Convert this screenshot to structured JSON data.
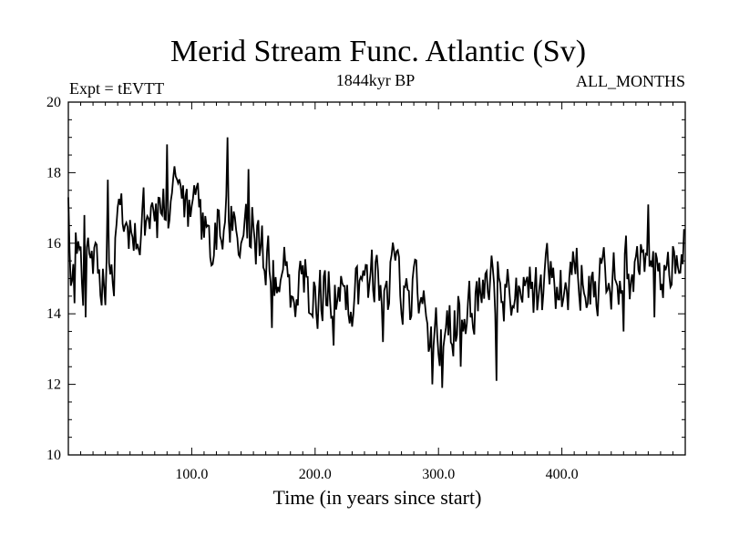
{
  "chart_data": {
    "type": "line",
    "title": "Merid Stream Func. Atlantic (Sv)",
    "subtitle_left": "Expt = tEVTT",
    "subtitle_center": "1844kyr BP",
    "subtitle_right": "ALL_MONTHS",
    "xlabel": "Time (in years since start)",
    "ylabel": "",
    "xlim": [
      0,
      500
    ],
    "ylim": [
      10,
      20
    ],
    "x_ticks": [
      100,
      200,
      300,
      400
    ],
    "x_tick_labels": [
      "100.0",
      "200.0",
      "300.0",
      "400.0"
    ],
    "y_ticks": [
      10,
      12,
      14,
      16,
      18,
      20
    ],
    "y_tick_labels": [
      "10",
      "12",
      "14",
      "16",
      "18",
      "20"
    ],
    "grid": false,
    "series": [
      {
        "name": "Merid Stream Func. Atlantic",
        "color": "#000000",
        "trend_points": [
          [
            0,
            15.6
          ],
          [
            10,
            15.1
          ],
          [
            20,
            15.5
          ],
          [
            30,
            15.3
          ],
          [
            40,
            16.1
          ],
          [
            60,
            16.5
          ],
          [
            80,
            17.1
          ],
          [
            100,
            16.6
          ],
          [
            110,
            16.2
          ],
          [
            130,
            16.9
          ],
          [
            150,
            16.6
          ],
          [
            155,
            15.8
          ],
          [
            170,
            15.0
          ],
          [
            200,
            14.7
          ],
          [
            220,
            14.6
          ],
          [
            250,
            15.0
          ],
          [
            270,
            14.9
          ],
          [
            285,
            14.3
          ],
          [
            300,
            13.2
          ],
          [
            310,
            13.8
          ],
          [
            330,
            14.2
          ],
          [
            350,
            14.8
          ],
          [
            380,
            14.6
          ],
          [
            420,
            15.1
          ],
          [
            460,
            15.3
          ],
          [
            480,
            15.0
          ],
          [
            497,
            15.6
          ]
        ],
        "noise_amplitude": 0.85,
        "extremes": [
          [
            0,
            17.3
          ],
          [
            5,
            14.3
          ],
          [
            13,
            16.8
          ],
          [
            14,
            13.9
          ],
          [
            32,
            17.8
          ],
          [
            37,
            14.5
          ],
          [
            80,
            18.8
          ],
          [
            115,
            15.6
          ],
          [
            129,
            19.0
          ],
          [
            140,
            16.0
          ],
          [
            146,
            18.1
          ],
          [
            152,
            15.4
          ],
          [
            165,
            13.6
          ],
          [
            215,
            13.1
          ],
          [
            255,
            13.2
          ],
          [
            295,
            12.0
          ],
          [
            303,
            11.9
          ],
          [
            318,
            12.5
          ],
          [
            347,
            12.1
          ],
          [
            450,
            13.5
          ],
          [
            470,
            17.1
          ],
          [
            475,
            13.9
          ],
          [
            499,
            16.4
          ]
        ]
      }
    ]
  }
}
